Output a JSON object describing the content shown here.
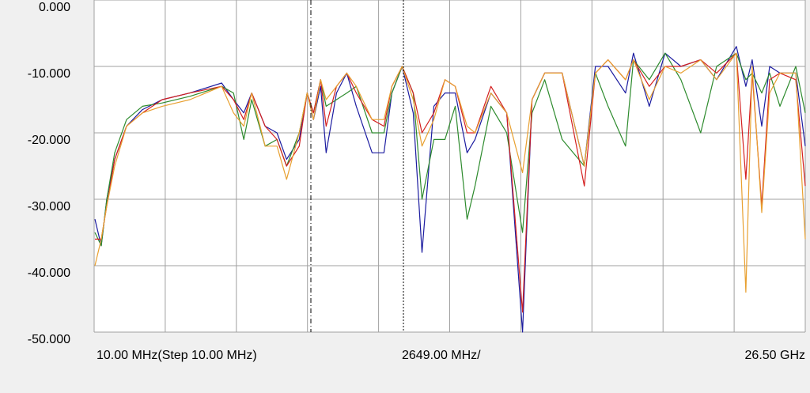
{
  "chart_data": {
    "type": "line",
    "x_labels": [
      "10.00 MHz(Step 10.00 MHz)",
      "2649.00 MHz/",
      "26.50 GHz"
    ],
    "xlim": [
      10,
      26500
    ],
    "xticks": [
      10,
      2659,
      5308,
      7957,
      10606,
      13255,
      15904,
      18553,
      21202,
      23851,
      26500
    ],
    "ylim": [
      -50,
      0
    ],
    "yticks": [
      {
        "value": 0,
        "label": "0.000"
      },
      {
        "value": -10,
        "label": "-10.000"
      },
      {
        "value": -20,
        "label": "-20.000"
      },
      {
        "value": -30,
        "label": "-30.000"
      },
      {
        "value": -40,
        "label": "-40.000"
      },
      {
        "value": -50,
        "label": "-50.000"
      }
    ],
    "grid": true,
    "x": [
      39,
      275,
      482,
      777,
      1219,
      1809,
      2547,
      3579,
      4759,
      5202,
      5585,
      5880,
      6382,
      6824,
      7178,
      7650,
      7945,
      8181,
      8447,
      8653,
      9037,
      9420,
      9774,
      10364,
      10807,
      11102,
      11485,
      11898,
      12223,
      12665,
      13078,
      13462,
      13904,
      14199,
      14789,
      15379,
      15969,
      16323,
      16795,
      17444,
      18270,
      18683,
      19155,
      19804,
      20099,
      20689,
      21279,
      21869,
      22606,
      23196,
      23934,
      24288,
      24524,
      24878,
      25173,
      25557,
      26147,
      26500
    ],
    "series": [
      {
        "color": "#1c1ca0",
        "values": [
          -33,
          -37,
          -30,
          -24,
          -19,
          -16.5,
          -15,
          -14,
          -12.5,
          -15,
          -17,
          -14,
          -19,
          -20,
          -24,
          -21,
          -14,
          -18,
          -13,
          -23,
          -14,
          -11,
          -16,
          -23,
          -23,
          -14,
          -10,
          -17,
          -38,
          -16,
          -14,
          -14,
          -23,
          -21,
          -14,
          -17,
          -50,
          -15,
          -11,
          -11,
          -25,
          -10,
          -10,
          -14,
          -8,
          -16,
          -8,
          -10,
          -9,
          -12,
          -7,
          -13,
          -9,
          -19,
          -10,
          -11,
          -11,
          -22
        ]
      },
      {
        "color": "#2e8b2e",
        "values": [
          -35,
          -37,
          -30,
          -23,
          -18,
          -16,
          -15.5,
          -14.5,
          -13,
          -14,
          -21,
          -15,
          -22,
          -21,
          -25,
          -20,
          -14,
          -17,
          -12,
          -16,
          -15,
          -14,
          -13,
          -20,
          -20,
          -14,
          -10,
          -14,
          -30,
          -21,
          -21,
          -16,
          -33,
          -28,
          -16,
          -20,
          -35,
          -17,
          -12,
          -21,
          -25,
          -11,
          -16,
          -22,
          -9,
          -12,
          -8,
          -12,
          -20,
          -10,
          -8,
          -12,
          -11,
          -14,
          -11,
          -16,
          -10,
          -17
        ]
      },
      {
        "color": "#d42020",
        "values": [
          -36,
          -36,
          -31,
          -24,
          -19,
          -17,
          -15,
          -14,
          -13,
          -15,
          -18,
          -14,
          -19,
          -21,
          -25,
          -22,
          -14,
          -17,
          -12,
          -19,
          -13,
          -11,
          -14,
          -18,
          -19,
          -13,
          -10,
          -14,
          -20,
          -17,
          -12,
          -13,
          -20,
          -20,
          -13,
          -17,
          -47,
          -15,
          -11,
          -11,
          -28,
          -11,
          -9,
          -12,
          -9,
          -13,
          -10,
          -10,
          -9,
          -11,
          -8,
          -27,
          -11,
          -31,
          -12,
          -11,
          -12,
          -28
        ]
      },
      {
        "color": "#e8a030",
        "values": [
          -40,
          -36,
          -31,
          -25,
          -19,
          -17,
          -16,
          -15,
          -13,
          -17,
          -19,
          -14,
          -22,
          -22,
          -27,
          -20,
          -14,
          -18,
          -12,
          -15,
          -13,
          -11,
          -13,
          -18,
          -18,
          -13,
          -10,
          -15,
          -22,
          -18,
          -12,
          -13,
          -19,
          -20,
          -14,
          -17,
          -26,
          -15,
          -11,
          -11,
          -25,
          -11,
          -9,
          -12,
          -9,
          -15,
          -10,
          -11,
          -9,
          -12,
          -8,
          -44,
          -10,
          -32,
          -14,
          -11,
          -11,
          -36
        ]
      }
    ]
  }
}
